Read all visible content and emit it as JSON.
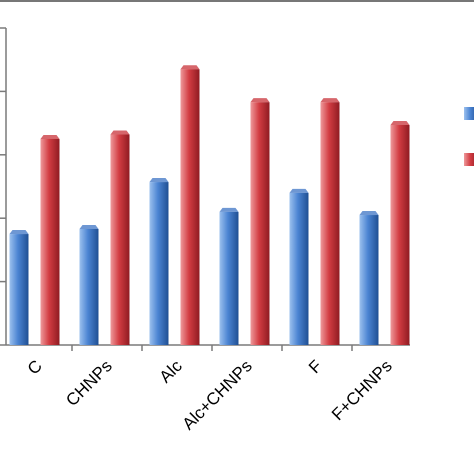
{
  "chart_data": {
    "type": "bar",
    "title": "",
    "xlabel": "",
    "ylabel": "",
    "categories": [
      "C",
      "CHNPs",
      "Alc",
      "Alc+CHNPs",
      "F",
      "F+CHNPs"
    ],
    "series": [
      {
        "color": "#3d74c4",
        "values": [
          1.75,
          1.83,
          2.57,
          2.1,
          2.4,
          2.05
        ]
      },
      {
        "color": "#c8333a",
        "values": [
          3.25,
          3.32,
          4.35,
          3.83,
          3.83,
          3.47
        ]
      }
    ],
    "ylim": [
      0,
      5
    ],
    "ytick_step": 1,
    "grid": false,
    "legend_position": "right"
  }
}
